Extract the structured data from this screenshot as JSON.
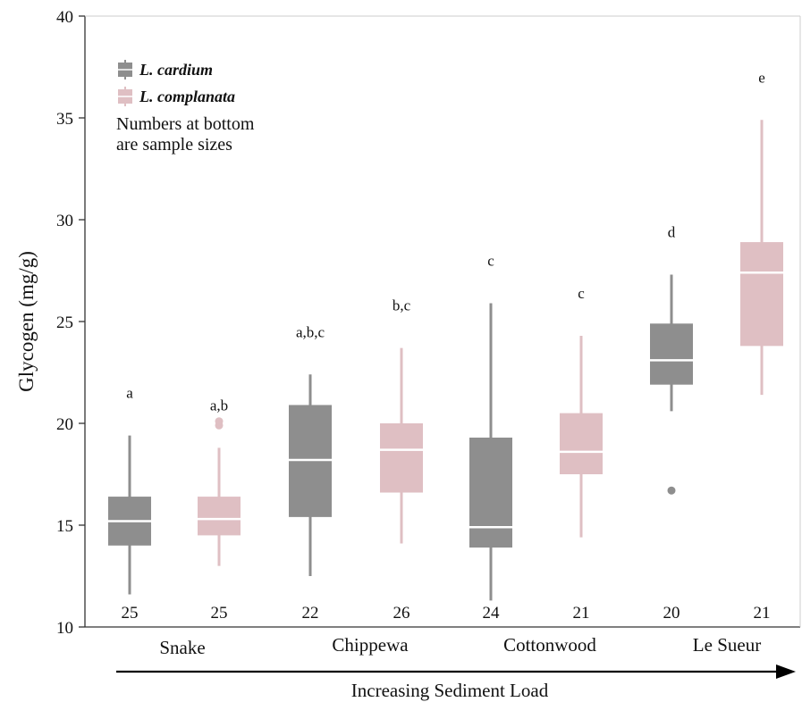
{
  "chart_data": {
    "type": "box",
    "ylabel": "Glycogen (mg/g)",
    "ylim": [
      10,
      40
    ],
    "yticks": [
      10,
      15,
      20,
      25,
      30,
      35,
      40
    ],
    "grid": false,
    "legend": {
      "placement": "top-left",
      "entries": [
        {
          "name": "L. cardium",
          "color": "#8e8e8e"
        },
        {
          "name": "L. complanata",
          "color": "#dfbfc3"
        }
      ],
      "note": [
        "Numbers at bottom",
        "are sample sizes"
      ]
    },
    "sites": [
      "Snake",
      "Chippewa",
      "Cottonwood",
      "Le Sueur"
    ],
    "x_direction_label": "Increasing Sediment Load",
    "colors": {
      "L. cardium": "#8e8e8e",
      "L. complanata": "#dfbfc3",
      "median": "#ffffff"
    },
    "boxes": [
      {
        "site": "Snake",
        "species": "L. cardium",
        "whisker_low": 11.6,
        "q1": 14.0,
        "median": 15.2,
        "q3": 16.4,
        "whisker_high": 19.4,
        "outliers": [],
        "n": "25",
        "significance": "a"
      },
      {
        "site": "Snake",
        "species": "L. complanata",
        "whisker_low": 13.0,
        "q1": 14.5,
        "median": 15.3,
        "q3": 16.4,
        "whisker_high": 18.8,
        "outliers": [
          19.9,
          20.1
        ],
        "n": "25",
        "significance": "a,b"
      },
      {
        "site": "Chippewa",
        "species": "L. cardium",
        "whisker_low": 12.5,
        "q1": 15.4,
        "median": 18.2,
        "q3": 20.9,
        "whisker_high": 22.4,
        "outliers": [],
        "n": "22",
        "significance": "a,b,c"
      },
      {
        "site": "Chippewa",
        "species": "L. complanata",
        "whisker_low": 14.1,
        "q1": 16.6,
        "median": 18.7,
        "q3": 20.0,
        "whisker_high": 23.7,
        "outliers": [],
        "n": "26",
        "significance": "b,c"
      },
      {
        "site": "Cottonwood",
        "species": "L. cardium",
        "whisker_low": 11.3,
        "q1": 13.9,
        "median": 14.9,
        "q3": 19.3,
        "whisker_high": 25.9,
        "outliers": [],
        "n": "24",
        "significance": "c"
      },
      {
        "site": "Cottonwood",
        "species": "L. complanata",
        "whisker_low": 14.4,
        "q1": 17.5,
        "median": 18.6,
        "q3": 20.5,
        "whisker_high": 24.3,
        "outliers": [],
        "n": "21",
        "significance": "c"
      },
      {
        "site": "Le Sueur",
        "species": "L. cardium",
        "whisker_low": 20.6,
        "q1": 21.9,
        "median": 23.1,
        "q3": 24.9,
        "whisker_high": 27.3,
        "outliers": [
          16.7
        ],
        "n": "20",
        "significance": "d"
      },
      {
        "site": "Le Sueur",
        "species": "L. complanata",
        "whisker_low": 21.4,
        "q1": 23.8,
        "median": 27.4,
        "q3": 28.9,
        "whisker_high": 34.9,
        "outliers": [],
        "n": "21",
        "significance": "e"
      }
    ]
  }
}
